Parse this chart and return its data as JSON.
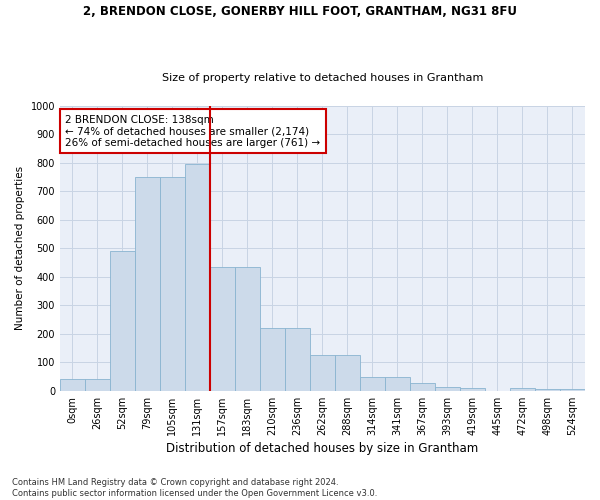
{
  "title_line1": "2, BRENDON CLOSE, GONERBY HILL FOOT, GRANTHAM, NG31 8FU",
  "title_line2": "Size of property relative to detached houses in Grantham",
  "xlabel": "Distribution of detached houses by size in Grantham",
  "ylabel": "Number of detached properties",
  "footnote": "Contains HM Land Registry data © Crown copyright and database right 2024.\nContains public sector information licensed under the Open Government Licence v3.0.",
  "bar_labels": [
    "0sqm",
    "26sqm",
    "52sqm",
    "79sqm",
    "105sqm",
    "131sqm",
    "157sqm",
    "183sqm",
    "210sqm",
    "236sqm",
    "262sqm",
    "288sqm",
    "314sqm",
    "341sqm",
    "367sqm",
    "393sqm",
    "419sqm",
    "445sqm",
    "472sqm",
    "498sqm",
    "524sqm"
  ],
  "bar_values": [
    40,
    40,
    490,
    750,
    750,
    795,
    435,
    435,
    220,
    220,
    125,
    125,
    50,
    50,
    27,
    15,
    10,
    0,
    10,
    8,
    8
  ],
  "bar_color": "#ccdaea",
  "bar_edge_color": "#89b4d0",
  "vline_x": 5.5,
  "vline_color": "#cc0000",
  "annotation_text": "2 BRENDON CLOSE: 138sqm\n← 74% of detached houses are smaller (2,174)\n26% of semi-detached houses are larger (761) →",
  "annotation_box_color": "#ffffff",
  "annotation_box_edge": "#cc0000",
  "ylim": [
    0,
    1000
  ],
  "yticks": [
    0,
    100,
    200,
    300,
    400,
    500,
    600,
    700,
    800,
    900,
    1000
  ],
  "grid_color": "#c8d4e4",
  "bg_color": "#eaeff8",
  "title1_fontsize": 8.5,
  "title2_fontsize": 8.0,
  "ylabel_fontsize": 7.5,
  "xlabel_fontsize": 8.5,
  "tick_fontsize": 7.0,
  "annot_fontsize": 7.5,
  "footnote_fontsize": 6.0
}
